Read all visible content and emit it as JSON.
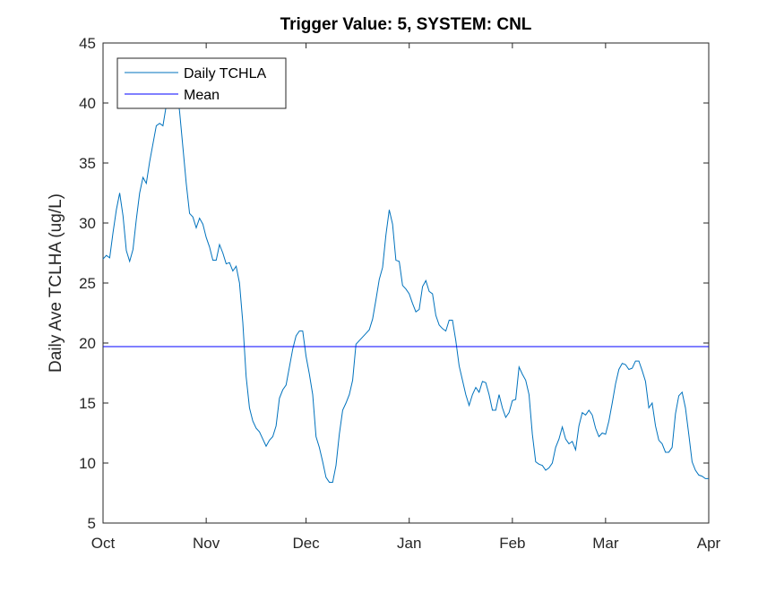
{
  "chart_data": {
    "type": "line",
    "title": "Trigger Value: 5, SYSTEM: CNL",
    "ylabel": "Daily Ave TCLHA (ug/L)",
    "x": [
      0,
      1,
      2,
      3,
      4,
      5,
      6,
      7,
      8,
      9,
      10,
      11,
      12,
      13,
      14,
      15,
      16,
      17,
      18,
      19,
      20,
      21,
      22,
      23,
      24,
      25,
      26,
      27,
      28,
      29,
      30,
      31,
      32,
      33,
      34,
      35,
      36,
      37,
      38,
      39,
      40,
      41,
      42,
      43,
      44,
      45,
      46,
      47,
      48,
      49,
      50,
      51,
      52,
      53,
      54,
      55,
      56,
      57,
      58,
      59,
      60,
      61,
      62,
      63,
      64,
      65,
      66,
      67,
      68,
      69,
      70,
      71,
      72,
      73,
      74,
      75,
      76,
      77,
      78,
      79,
      80,
      81,
      82,
      83,
      84,
      85,
      86,
      87,
      88,
      89,
      90,
      91,
      92,
      93,
      94,
      95,
      96,
      97,
      98,
      99,
      100,
      101,
      102,
      103,
      104,
      105,
      106,
      107,
      108,
      109,
      110,
      111,
      112,
      113,
      114,
      115,
      116,
      117,
      118,
      119,
      120,
      121,
      122,
      123,
      124,
      125,
      126,
      127,
      128,
      129,
      130,
      131,
      132,
      133,
      134,
      135,
      136,
      137,
      138,
      139,
      140,
      141,
      142,
      143,
      144,
      145,
      146,
      147,
      148,
      149,
      150,
      151,
      152,
      153,
      154,
      155,
      156,
      157,
      158,
      159,
      160,
      161,
      162,
      163,
      164,
      165,
      166,
      167,
      168,
      169,
      170,
      171,
      172,
      173,
      174,
      175,
      176,
      177,
      178,
      179,
      180,
      181,
      182
    ],
    "series": [
      {
        "name": "Daily TCHLA",
        "color": "#0072bd",
        "values": [
          27.0,
          27.3,
          27.1,
          29.2,
          31.1,
          32.5,
          30.6,
          27.7,
          26.8,
          27.8,
          30.3,
          32.5,
          33.8,
          33.3,
          35.1,
          36.6,
          38.1,
          38.3,
          38.1,
          39.8,
          41.1,
          40.7,
          41.5,
          39.3,
          36.3,
          33.3,
          30.8,
          30.5,
          29.6,
          30.4,
          29.9,
          28.8,
          28.0,
          26.9,
          26.9,
          28.2,
          27.5,
          26.6,
          26.7,
          26.0,
          26.4,
          25.0,
          21.7,
          17.2,
          14.6,
          13.5,
          12.9,
          12.6,
          12.0,
          11.4,
          11.9,
          12.2,
          13.1,
          15.4,
          16.1,
          16.5,
          18.0,
          19.5,
          20.6,
          21.0,
          21.0,
          18.9,
          17.4,
          15.7,
          12.2,
          11.3,
          10.1,
          8.8,
          8.4,
          8.4,
          9.8,
          12.4,
          14.4,
          15.0,
          15.7,
          16.9,
          19.9,
          20.2,
          20.5,
          20.8,
          21.1,
          22.0,
          23.6,
          25.3,
          26.3,
          29.0,
          31.1,
          29.9,
          26.9,
          26.8,
          24.8,
          24.5,
          24.1,
          23.3,
          22.6,
          22.8,
          24.7,
          25.2,
          24.3,
          24.1,
          22.3,
          21.5,
          21.2,
          21.0,
          21.9,
          21.9,
          20.2,
          18.1,
          16.9,
          15.7,
          14.8,
          15.7,
          16.3,
          15.9,
          16.8,
          16.7,
          15.7,
          14.4,
          14.4,
          15.7,
          14.6,
          13.8,
          14.2,
          15.2,
          15.3,
          18.0,
          17.4,
          16.9,
          15.7,
          12.4,
          10.1,
          9.9,
          9.8,
          9.4,
          9.6,
          10.0,
          11.3,
          12.0,
          13.0,
          12.0,
          11.6,
          11.8,
          11.1,
          13.1,
          14.2,
          14.0,
          14.4,
          14.0,
          12.9,
          12.2,
          12.5,
          12.4,
          13.5,
          15.0,
          16.6,
          17.8,
          18.3,
          18.2,
          17.8,
          17.9,
          18.5,
          18.5,
          17.7,
          16.8,
          14.6,
          15.0,
          13.1,
          11.9,
          11.6,
          10.9,
          10.9,
          11.3,
          14.1,
          15.6,
          15.9,
          14.6,
          12.4,
          10.1,
          9.4,
          9.0,
          8.9,
          8.7,
          8.7
        ]
      }
    ],
    "reference_lines": [
      {
        "name": "Mean",
        "value": 19.7,
        "color": "#0000ff"
      }
    ],
    "xlim": [
      0,
      182
    ],
    "xticks": [
      {
        "value": 0,
        "label": "Oct"
      },
      {
        "value": 31,
        "label": "Nov"
      },
      {
        "value": 61,
        "label": "Dec"
      },
      {
        "value": 92,
        "label": "Jan"
      },
      {
        "value": 123,
        "label": "Feb"
      },
      {
        "value": 151,
        "label": "Mar"
      },
      {
        "value": 182,
        "label": "Apr"
      }
    ],
    "ylim": [
      5,
      45
    ],
    "yticks": [
      5,
      10,
      15,
      20,
      25,
      30,
      35,
      40,
      45
    ],
    "legend": "upper left"
  }
}
